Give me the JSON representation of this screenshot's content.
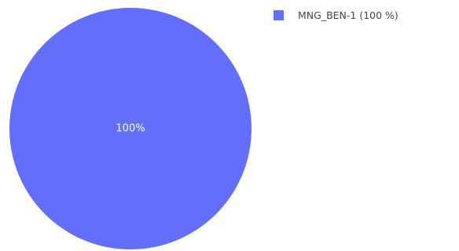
{
  "chart_data": {
    "type": "pie",
    "slices": [
      {
        "label": "MNG_BEN-1",
        "value": 100,
        "display": "100%",
        "color": "#636efa"
      }
    ],
    "legend": {
      "position": "top-right",
      "items": [
        {
          "label": "MNG_BEN-1 (100 %)",
          "color": "#636efa"
        }
      ]
    }
  }
}
